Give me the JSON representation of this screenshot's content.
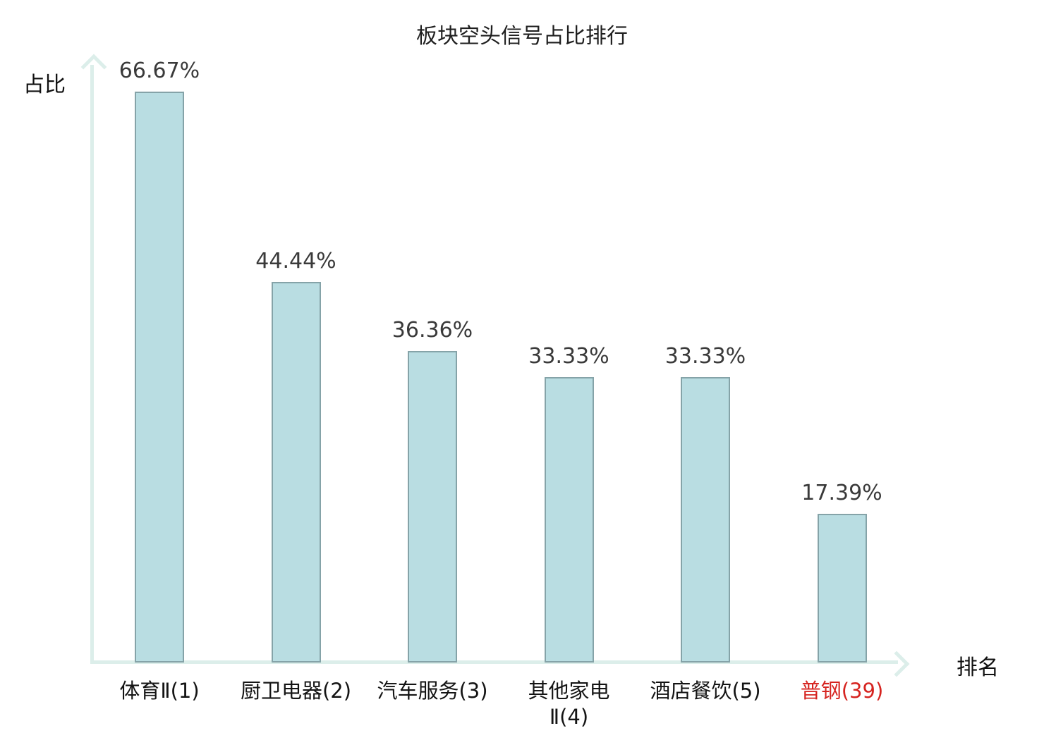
{
  "chart_data": {
    "type": "bar",
    "title": "板块空头信号占比排行",
    "ylabel": "占比",
    "xlabel": "排名",
    "categories": [
      "体育Ⅱ(1)",
      "厨卫电器(2)",
      "汽车服务(3)",
      "其他家电Ⅱ(4)",
      "酒店餐饮(5)",
      "普钢(39)"
    ],
    "category_lines": [
      [
        "体育Ⅱ(1)"
      ],
      [
        "厨卫电器(2)"
      ],
      [
        "汽车服务(3)"
      ],
      [
        "其他家电",
        "Ⅱ(4)"
      ],
      [
        "酒店餐饮(5)"
      ],
      [
        "普钢(39)"
      ]
    ],
    "values": [
      66.67,
      44.44,
      36.36,
      33.33,
      33.33,
      17.39
    ],
    "value_labels": [
      "66.67%",
      "44.44%",
      "36.36%",
      "33.33%",
      "33.33%",
      "17.39%"
    ],
    "highlight_index": 5,
    "ylim": [
      0,
      70
    ],
    "grid": false,
    "legend": "none"
  },
  "colors": {
    "bar_fill": "#b9dde2",
    "bar_border": "#85a3a8",
    "axis": "#dceeea",
    "value_text": "#3a3a3a",
    "tick_text": "#141414",
    "highlight_text": "#d62420",
    "background": "#ffffff"
  }
}
